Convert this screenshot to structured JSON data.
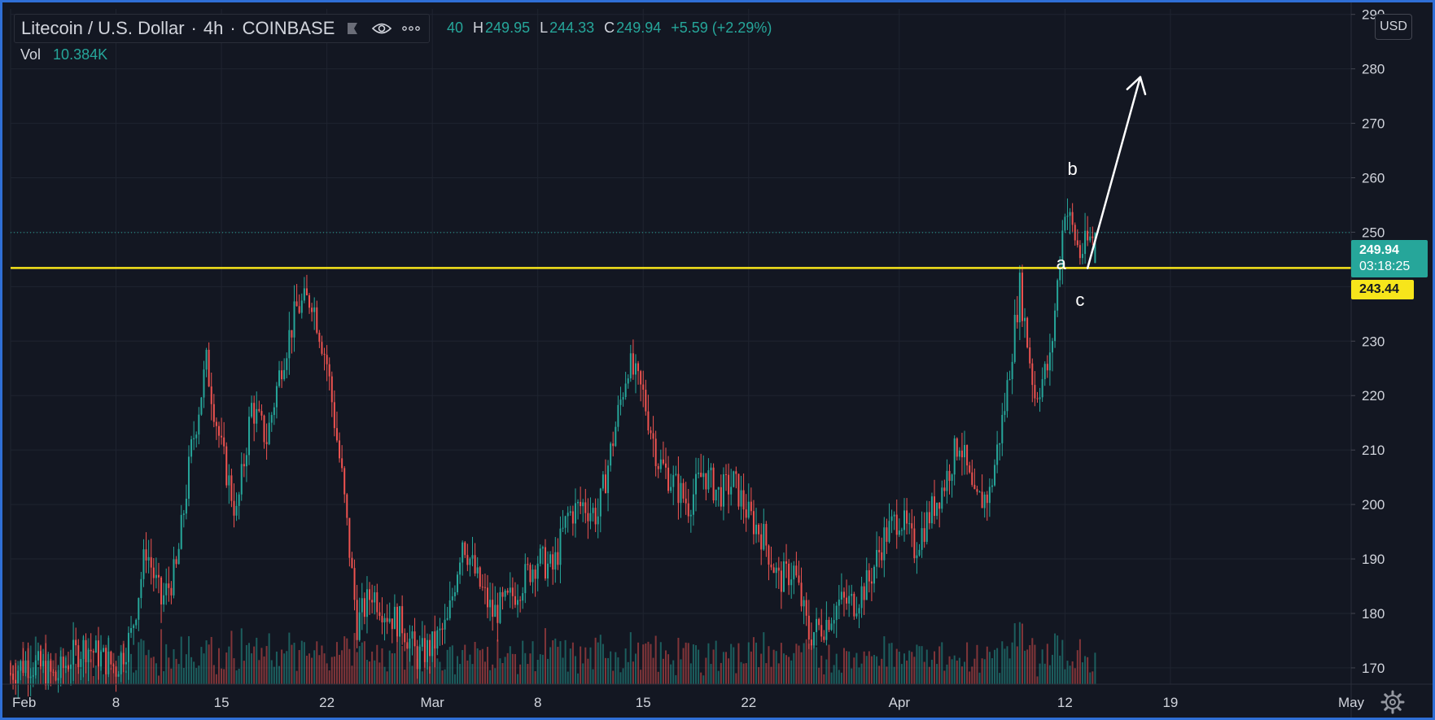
{
  "legend": {
    "symbol": "Litecoin / U.S. Dollar",
    "interval": "4h",
    "exchange": "COINBASE",
    "open_fragment": "40",
    "high_label": "H",
    "high": "249.95",
    "low_label": "L",
    "low": "244.33",
    "close_label": "C",
    "close": "249.94",
    "change": "+5.59 (+2.29%)",
    "vol_label": "Vol",
    "vol_value": "10.384K",
    "icons": [
      "flag-icon",
      "eye-icon",
      "more-icon"
    ]
  },
  "currency_button": "USD",
  "last_price": {
    "value": "249.94",
    "timer": "03:18:25"
  },
  "horizontal_line": {
    "value": "243.44",
    "price": 243.44,
    "color": "#f7e51b"
  },
  "annotations": {
    "labels": [
      {
        "text": "a",
        "date": "2021-04-11T18:00",
        "price": 243.2
      },
      {
        "text": "b",
        "date": "2021-04-12T12:00",
        "price": 260.5
      },
      {
        "text": "c",
        "date": "2021-04-13T00:00",
        "price": 236.5
      }
    ],
    "arrow": {
      "from_date": "2021-04-13T12:00",
      "from_price": 243.4,
      "to_date": "2021-04-17T00:00",
      "to_price": 278.5,
      "color": "#ffffff"
    }
  },
  "colors": {
    "up": "#26a69a",
    "down": "#ef5350",
    "background": "#131722",
    "grid": "#1f2430",
    "text": "#d1d4dc"
  },
  "chart_data": {
    "type": "candlestick",
    "interval": "4h",
    "x_axis": {
      "tick_labels": [
        "Feb",
        "8",
        "15",
        "22",
        "Mar",
        "8",
        "15",
        "22",
        "Apr",
        "12",
        "19",
        "May"
      ],
      "tick_dates": [
        "2021-02-01",
        "2021-02-08",
        "2021-02-15",
        "2021-02-22",
        "2021-03-01",
        "2021-03-08",
        "2021-03-15",
        "2021-03-22",
        "2021-04-01",
        "2021-04-12",
        "2021-04-19",
        "2021-05-01"
      ],
      "range": [
        "2021-02-01",
        "2021-05-01"
      ]
    },
    "y_axis": {
      "tick_labels": [
        "290",
        "280",
        "270",
        "260",
        "250",
        "240",
        "230",
        "220",
        "210",
        "200",
        "190",
        "180",
        "170"
      ],
      "ylim": [
        167,
        291
      ]
    },
    "grid": true,
    "daily_close": [
      [
        "2021-02-01",
        169
      ],
      [
        "2021-02-02",
        171
      ],
      [
        "2021-02-03",
        170
      ],
      [
        "2021-02-04",
        168
      ],
      [
        "2021-02-05",
        172
      ],
      [
        "2021-02-06",
        174
      ],
      [
        "2021-02-07",
        172
      ],
      [
        "2021-02-08",
        170
      ],
      [
        "2021-02-09",
        176
      ],
      [
        "2021-02-10",
        192
      ],
      [
        "2021-02-11",
        182
      ],
      [
        "2021-02-12",
        188
      ],
      [
        "2021-02-13",
        210
      ],
      [
        "2021-02-14",
        226
      ],
      [
        "2021-02-15",
        210
      ],
      [
        "2021-02-16",
        198
      ],
      [
        "2021-02-17",
        218
      ],
      [
        "2021-02-18",
        212
      ],
      [
        "2021-02-19",
        226
      ],
      [
        "2021-02-20",
        236
      ],
      [
        "2021-02-21",
        238
      ],
      [
        "2021-02-22",
        226
      ],
      [
        "2021-02-23",
        205
      ],
      [
        "2021-02-24",
        178
      ],
      [
        "2021-02-25",
        184
      ],
      [
        "2021-02-26",
        180
      ],
      [
        "2021-02-27",
        178
      ],
      [
        "2021-02-28",
        172
      ],
      [
        "2021-03-01",
        174
      ],
      [
        "2021-03-02",
        178
      ],
      [
        "2021-03-03",
        194
      ],
      [
        "2021-03-04",
        186
      ],
      [
        "2021-03-05",
        180
      ],
      [
        "2021-03-06",
        182
      ],
      [
        "2021-03-07",
        186
      ],
      [
        "2021-03-08",
        190
      ],
      [
        "2021-03-09",
        188
      ],
      [
        "2021-03-10",
        198
      ],
      [
        "2021-03-11",
        200
      ],
      [
        "2021-03-12",
        198
      ],
      [
        "2021-03-13",
        212
      ],
      [
        "2021-03-14",
        226
      ],
      [
        "2021-03-15",
        220
      ],
      [
        "2021-03-16",
        208
      ],
      [
        "2021-03-17",
        204
      ],
      [
        "2021-03-18",
        200
      ],
      [
        "2021-03-19",
        206
      ],
      [
        "2021-03-20",
        202
      ],
      [
        "2021-03-21",
        204
      ],
      [
        "2021-03-22",
        198
      ],
      [
        "2021-03-23",
        194
      ],
      [
        "2021-03-24",
        186
      ],
      [
        "2021-03-25",
        188
      ],
      [
        "2021-03-26",
        176
      ],
      [
        "2021-03-27",
        178
      ],
      [
        "2021-03-28",
        182
      ],
      [
        "2021-03-29",
        182
      ],
      [
        "2021-03-30",
        186
      ],
      [
        "2021-03-31",
        194
      ],
      [
        "2021-04-01",
        198
      ],
      [
        "2021-04-02",
        192
      ],
      [
        "2021-04-03",
        198
      ],
      [
        "2021-04-04",
        204
      ],
      [
        "2021-04-05",
        212
      ],
      [
        "2021-04-06",
        200
      ],
      [
        "2021-04-07",
        202
      ],
      [
        "2021-04-08",
        218
      ],
      [
        "2021-04-09",
        240
      ],
      [
        "2021-04-10",
        220
      ],
      [
        "2021-04-11",
        226
      ],
      [
        "2021-04-12",
        255
      ],
      [
        "2021-04-13",
        246
      ],
      [
        "2021-04-14",
        249.94
      ]
    ],
    "volume": {
      "label": "Vol",
      "last": "10.384K"
    },
    "last_close": 249.94
  }
}
